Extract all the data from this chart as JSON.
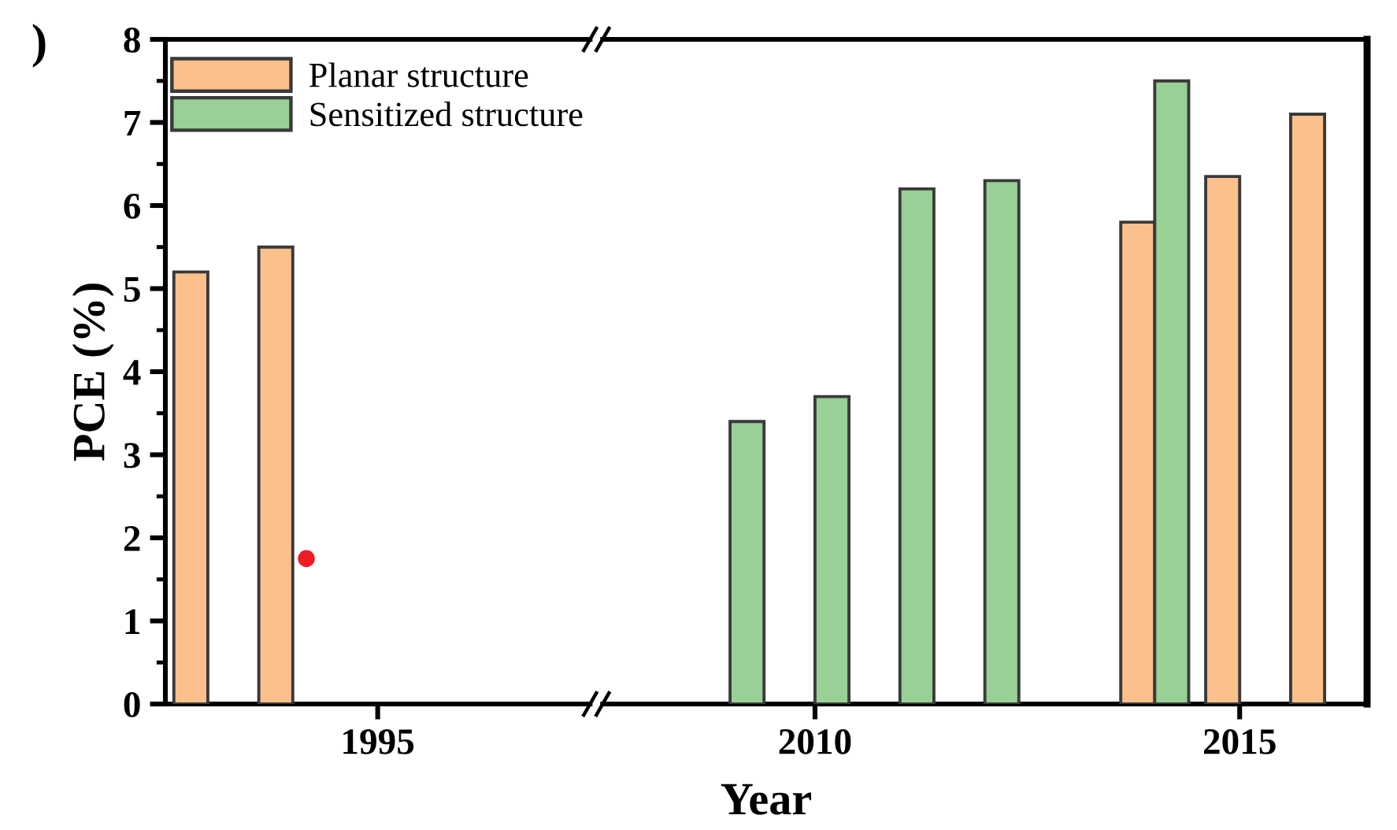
{
  "chart_data": [
    {
      "type": "bar",
      "ylabel": "PCE (%)",
      "annotations": [
        ")"
      ],
      "legend": "top",
      "ylim": [
        0,
        8
      ],
      "yticks": [
        0,
        {
          "value": 0.5,
          "label": null
        },
        1,
        {
          "value": 1.5,
          "label": null
        },
        2,
        {
          "value": 2.5,
          "label": null
        },
        3,
        {
          "value": 3.5,
          "label": null
        },
        4,
        {
          "value": 4.5,
          "label": null
        },
        5,
        {
          "value": 5.5,
          "label": null
        },
        6,
        {
          "value": 6.5,
          "label": null
        },
        7,
        {
          "value": 7.5,
          "label": null
        },
        8
      ],
      "categories": [
        null,
        null,
        "1995",
        null,
        null
      ],
      "series": [
        {
          "name": "Planar structure",
          "color": "#fbc08c",
          "values": [
            5.2,
            5.5,
            null,
            null,
            null
          ]
        },
        {
          "name": "Sensitized structure",
          "color": "#98d095",
          "values": [
            null,
            null,
            null,
            null,
            null
          ]
        },
        {
          "type": "scatter",
          "marker": "circle",
          "color": "#ee1c25",
          "values": [
            null,
            1.75,
            null,
            null,
            null
          ]
        }
      ]
    },
    {
      "type": "bar",
      "xlabel": "Year",
      "tick_labels": "x",
      "ylim": [
        0,
        8
      ],
      "categories": [
        null,
        null,
        "2010",
        null,
        null,
        null,
        null,
        "2015",
        null
      ],
      "series": [
        {
          "color": "#fbc08c",
          "values": [
            null,
            null,
            null,
            null,
            null,
            null,
            5.8,
            6.35,
            7.1
          ]
        },
        {
          "color": "#98d095",
          "values": [
            null,
            3.4,
            3.7,
            6.2,
            6.3,
            null,
            7.5,
            null,
            null
          ]
        }
      ]
    }
  ]
}
